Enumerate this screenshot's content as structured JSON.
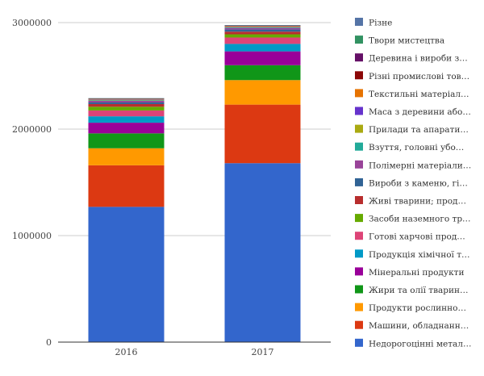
{
  "chart_data": {
    "type": "bar",
    "stacked": true,
    "categories": [
      "2016",
      "2017"
    ],
    "ylim": [
      0,
      3000000
    ],
    "yticks": [
      "0",
      "1000000",
      "2000000",
      "3000000"
    ],
    "grid": true,
    "legend_position": "right",
    "series": [
      {
        "name": "Недорогоцінні метал…",
        "color": "#3366cc",
        "values": [
          1270000,
          1680000
        ]
      },
      {
        "name": "Машини, обладнанн…",
        "color": "#dc3912",
        "values": [
          390000,
          550000
        ]
      },
      {
        "name": "Продукти рослинно…",
        "color": "#ff9900",
        "values": [
          160000,
          230000
        ]
      },
      {
        "name": "Жири та олії тварин…",
        "color": "#109618",
        "values": [
          140000,
          140000
        ]
      },
      {
        "name": "Мінеральні продукти",
        "color": "#990099",
        "values": [
          100000,
          130000
        ]
      },
      {
        "name": "Продукція хімічної т…",
        "color": "#0099c6",
        "values": [
          60000,
          70000
        ]
      },
      {
        "name": "Готові харчові прод…",
        "color": "#dd4477",
        "values": [
          55000,
          60000
        ]
      },
      {
        "name": "Засоби наземного тр…",
        "color": "#66aa00",
        "values": [
          35000,
          30000
        ]
      },
      {
        "name": "Живі тварини; прод…",
        "color": "#b82e2e",
        "values": [
          25000,
          25000
        ]
      },
      {
        "name": "Вироби з каменю, гі…",
        "color": "#316395",
        "values": [
          15000,
          20000
        ]
      },
      {
        "name": "Полімерні матеріали…",
        "color": "#994499",
        "values": [
          15000,
          15000
        ]
      },
      {
        "name": "Взуття, головні убо…",
        "color": "#22aa99",
        "values": [
          5000,
          5000
        ]
      },
      {
        "name": "Прилади та апарати…",
        "color": "#aaaa11",
        "values": [
          5000,
          5000
        ]
      },
      {
        "name": "Маса з деревини або…",
        "color": "#6633cc",
        "values": [
          4000,
          4000
        ]
      },
      {
        "name": "Текстильні матеріал…",
        "color": "#e67300",
        "values": [
          4000,
          4000
        ]
      },
      {
        "name": "Різні промислові тов…",
        "color": "#8b0707",
        "values": [
          3000,
          3000
        ]
      },
      {
        "name": "Деревина і вироби з…",
        "color": "#651067",
        "values": [
          2000,
          3000
        ]
      },
      {
        "name": "Твори мистецтва",
        "color": "#329262",
        "values": [
          1000,
          1000
        ]
      },
      {
        "name": "Різне",
        "color": "#5574a6",
        "values": [
          1000,
          1000
        ]
      }
    ]
  }
}
